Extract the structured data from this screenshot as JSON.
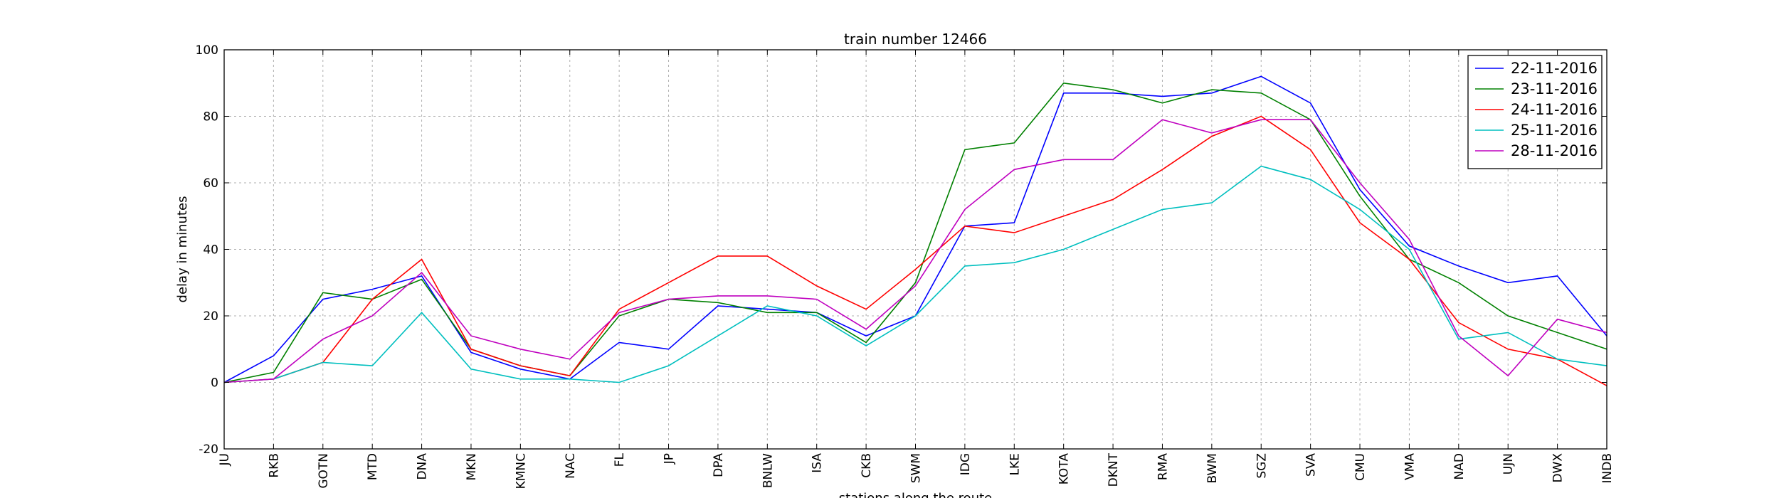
{
  "chart_data": {
    "type": "line",
    "title": "train number 12466",
    "xlabel": "stations along the route",
    "ylabel": "delay in minutes",
    "ylim": [
      -20,
      100
    ],
    "yticks": [
      -20,
      0,
      20,
      40,
      60,
      80,
      100
    ],
    "grid": true,
    "legend": "top-right",
    "categories": [
      "JU",
      "RKB",
      "GOTN",
      "MTD",
      "DNA",
      "MKN",
      "KMNC",
      "NAC",
      "FL",
      "JP",
      "DPA",
      "BNLW",
      "ISA",
      "CKB",
      "SWM",
      "IDG",
      "LKE",
      "KOTA",
      "DKNT",
      "RMA",
      "BWM",
      "SGZ",
      "SVA",
      "CMU",
      "VMA",
      "NAD",
      "UJN",
      "DWX",
      "INDB"
    ],
    "series": [
      {
        "name": "22-11-2016",
        "color": "#0000ff",
        "values": [
          0,
          8,
          25,
          28,
          32,
          9,
          4,
          1,
          12,
          10,
          23,
          22,
          21,
          14,
          20,
          47,
          48,
          87,
          87,
          86,
          87,
          92,
          84,
          58,
          41,
          35,
          30,
          32,
          14
        ]
      },
      {
        "name": "23-11-2016",
        "color": "#008000",
        "values": [
          0,
          3,
          27,
          25,
          31,
          10,
          5,
          2,
          20,
          25,
          24,
          21,
          21,
          12,
          30,
          70,
          72,
          90,
          88,
          84,
          88,
          87,
          79,
          56,
          37,
          30,
          20,
          15,
          10
        ]
      },
      {
        "name": "24-11-2016",
        "color": "#ff0000",
        "values": [
          0,
          1,
          6,
          25,
          37,
          10,
          5,
          2,
          22,
          30,
          38,
          38,
          29,
          22,
          34,
          47,
          45,
          50,
          55,
          64,
          74,
          80,
          70,
          48,
          37,
          18,
          10,
          7,
          -1
        ]
      },
      {
        "name": "25-11-2016",
        "color": "#00bfbf",
        "values": [
          0,
          1,
          6,
          5,
          21,
          4,
          1,
          1,
          0,
          5,
          14,
          23,
          20,
          11,
          20,
          35,
          36,
          40,
          46,
          52,
          54,
          65,
          61,
          52,
          40,
          13,
          15,
          7,
          5
        ]
      },
      {
        "name": "28-11-2016",
        "color": "#bf00bf",
        "values": [
          0,
          1,
          13,
          20,
          33,
          14,
          10,
          7,
          21,
          25,
          26,
          26,
          25,
          16,
          29,
          52,
          64,
          67,
          67,
          79,
          75,
          79,
          79,
          60,
          43,
          14,
          2,
          19,
          15
        ]
      }
    ]
  }
}
